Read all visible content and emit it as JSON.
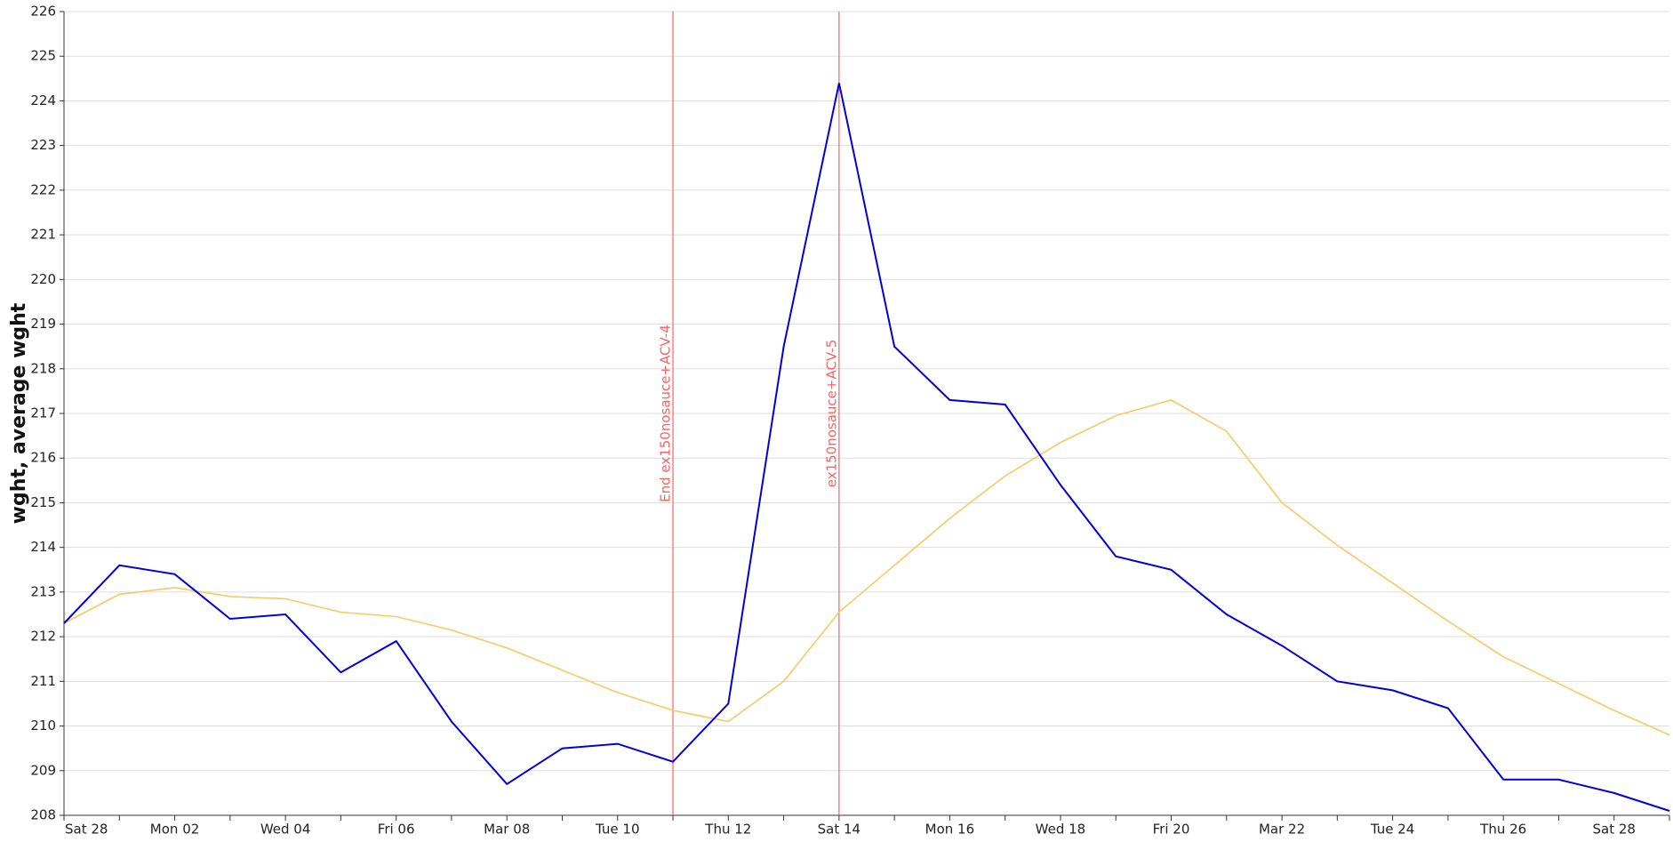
{
  "chart_data": {
    "type": "line",
    "ylabel": "wght, average wght",
    "categories": [
      "Sat 28",
      null,
      "Mon 02",
      null,
      "Wed 04",
      null,
      "Fri 06",
      null,
      "Mar 08",
      null,
      "Tue 10",
      null,
      "Thu 12",
      null,
      "Sat 14",
      null,
      "Mon 16",
      null,
      "Wed 18",
      null,
      "Fri 20",
      null,
      "Mar 22",
      null,
      "Tue 24",
      null,
      "Thu 26",
      null,
      "Sat 28",
      null
    ],
    "series": [
      {
        "color": "#0000dd",
        "values": [
          212.3,
          213.6,
          213.4,
          212.4,
          212.5,
          211.2,
          211.9,
          210.1,
          208.7,
          209.5,
          209.6,
          209.2,
          210.5,
          218.5,
          224.4,
          218.5,
          217.3,
          217.2,
          215.4,
          213.8,
          213.5,
          212.5,
          211.8,
          211.0,
          210.8,
          210.4,
          208.8,
          208.8,
          208.5,
          208.1
        ]
      },
      {
        "color": "#fcc761",
        "values": [
          212.3,
          212.95,
          213.1,
          212.9,
          212.85,
          212.55,
          212.45,
          212.15,
          211.75,
          211.25,
          210.75,
          210.35,
          210.1,
          211.0,
          212.55,
          213.6,
          214.65,
          215.6,
          216.35,
          216.95,
          217.3,
          216.6,
          215.0,
          214.05,
          213.2,
          212.35,
          211.55,
          210.95,
          210.35,
          209.8
        ]
      }
    ],
    "annotations": [
      {
        "x": 11,
        "label": "End ex150nosauce+ACV-4"
      },
      {
        "x": 14,
        "label": "ex150nosauce+ACV-5"
      }
    ],
    "annotation_color": "#ff6060",
    "ylim": [
      208,
      226
    ],
    "yticks": [
      208,
      209,
      210,
      211,
      212,
      213,
      214,
      215,
      216,
      217,
      218,
      219,
      220,
      221,
      222,
      223,
      224,
      225,
      226
    ],
    "grid": true
  }
}
